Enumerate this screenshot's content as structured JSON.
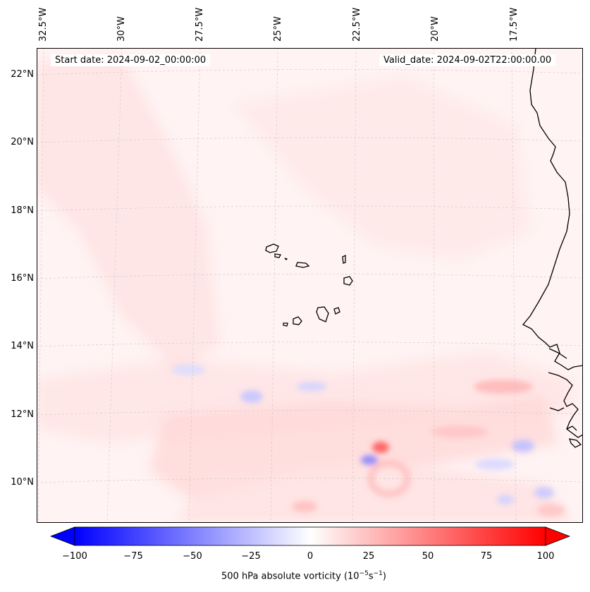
{
  "map": {
    "start_date": "Start date: 2024-09-02_00:00:00",
    "valid_date": "Valid_date: 2024-09-02T22:00:00.00",
    "lon_labels": [
      "32.5°W",
      "30°W",
      "27.5°W",
      "25°W",
      "22.5°W",
      "20°W",
      "17.5°W"
    ],
    "lat_labels": [
      "22°N",
      "20°N",
      "18°N",
      "16°N",
      "14°N",
      "12°N",
      "10°N"
    ],
    "region": "Cabo Verde islands and West African coast",
    "colors": {
      "negative": "#0000ff",
      "zero": "#ffffff",
      "positive": "#ff0000",
      "coastline": "#000000"
    }
  },
  "colorbar": {
    "ticks": [
      "−100",
      "−75",
      "−50",
      "−25",
      "0",
      "25",
      "50",
      "75",
      "100"
    ],
    "min": -100,
    "max": 100,
    "label_prefix": "500 hPa absolute vorticity (10",
    "label_exp1": "−5",
    "label_mid": "s",
    "label_exp2": "−1",
    "label_suffix": ")"
  }
}
